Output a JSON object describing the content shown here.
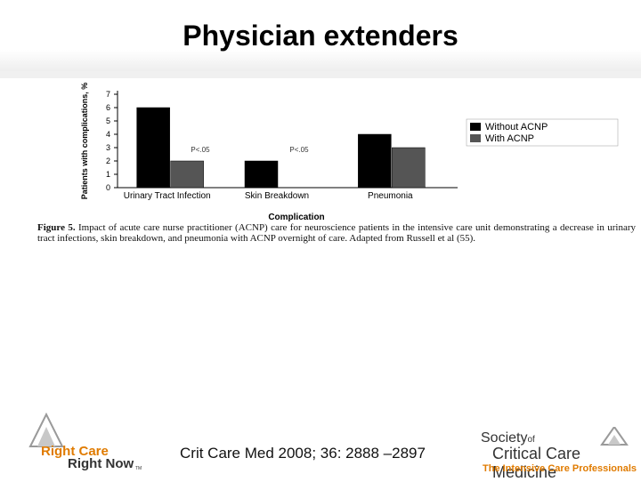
{
  "slide": {
    "title": "Physician extenders",
    "citation": "Crit Care Med 2008; 36: 2888 –2897"
  },
  "figure": {
    "caption_label": "Figure 5.",
    "caption_text": "Impact of acute care nurse practitioner (ACNP) care for neuroscience patients in the intensive care unit demonstrating a decrease in urinary tract infections, skin breakdown, and pneumonia with ACNP overnight of care. Adapted from Russell et al (55)."
  },
  "chart_data": {
    "type": "bar",
    "categories": [
      "Urinary Tract Infection",
      "Skin Breakdown",
      "Pneumonia"
    ],
    "series": [
      {
        "name": "Without ACNP",
        "values": [
          6,
          2,
          4
        ],
        "color": "#000000"
      },
      {
        "name": "With ACNP",
        "values": [
          2,
          0,
          3
        ],
        "color": "#555555"
      }
    ],
    "annotations": [
      "P<.05",
      "P<.05"
    ],
    "xlabel": "Complication",
    "ylabel": "Patients with complications, %",
    "ylim": [
      0,
      7
    ],
    "yticks": [
      0,
      1,
      2,
      3,
      4,
      5,
      6,
      7
    ],
    "grid": false,
    "legend_position": "right"
  },
  "logos": {
    "left_line1": "Right Care",
    "left_line2": "Right Now",
    "left_tm": "TM",
    "right_society": "Society",
    "right_of": "of",
    "right_name": "Critical Care Medicine",
    "right_tagline": "The Intensive Care Professionals",
    "right_accent": "#e07b00",
    "left_accent": "#e07b00"
  }
}
